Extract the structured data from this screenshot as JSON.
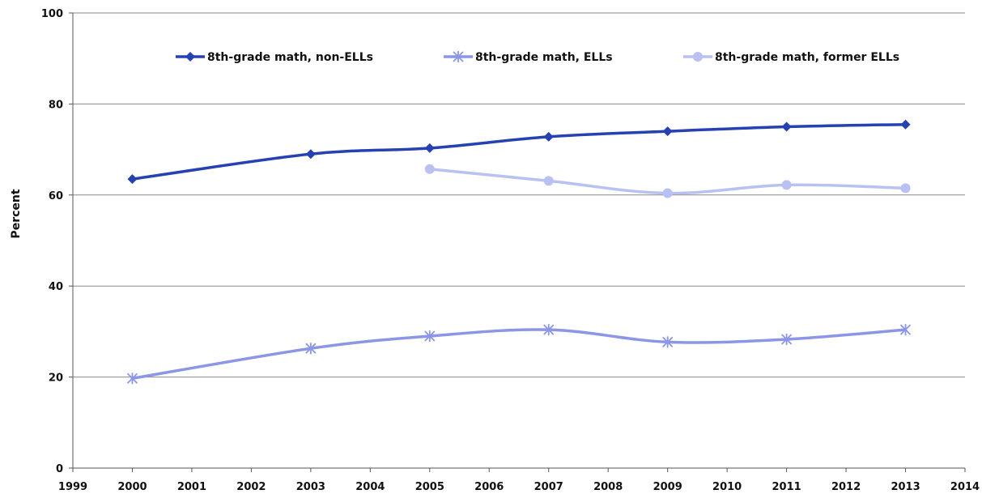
{
  "chart_data": {
    "type": "line",
    "title": "",
    "xlabel": "",
    "ylabel": "Percent",
    "xlim": [
      1999,
      2014
    ],
    "ylim": [
      0,
      100
    ],
    "x_ticks": [
      1999,
      2000,
      2001,
      2002,
      2003,
      2004,
      2005,
      2006,
      2007,
      2008,
      2009,
      2010,
      2011,
      2012,
      2013,
      2014
    ],
    "y_ticks": [
      0,
      20,
      40,
      60,
      80,
      100
    ],
    "grid": "horizontal",
    "legend_position": "top",
    "series": [
      {
        "name": "8th-grade math, non-ELLs",
        "color": "#2541b2",
        "marker": "diamond",
        "x": [
          2000,
          2003,
          2005,
          2007,
          2009,
          2011,
          2013
        ],
        "values": [
          63.5,
          69,
          70.3,
          72.8,
          74,
          75,
          75.5
        ]
      },
      {
        "name": "8th-grade math, ELLs",
        "color": "#8c96e6",
        "marker": "asterisk",
        "x": [
          2000,
          2003,
          2005,
          2007,
          2009,
          2011,
          2013
        ],
        "values": [
          19.7,
          26.3,
          29,
          30.4,
          27.7,
          28.3,
          30.4
        ]
      },
      {
        "name": "8th-grade math, former ELLs",
        "color": "#b9c1f2",
        "marker": "circle",
        "x": [
          2005,
          2007,
          2009,
          2011,
          2013
        ],
        "values": [
          65.7,
          63.1,
          60.4,
          62.2,
          61.5
        ]
      }
    ]
  }
}
